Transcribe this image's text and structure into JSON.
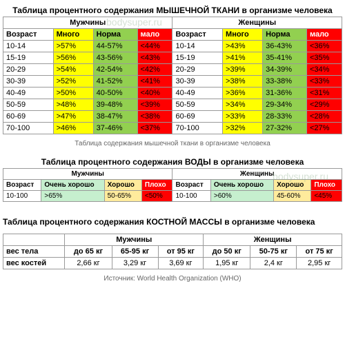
{
  "watermark": "bodysuper.ru",
  "colors": {
    "yellow": "#ffff00",
    "green": "#92d050",
    "red": "#ff0000",
    "lightgreen": "#c6efce",
    "lightyellow": "#ffeb9c",
    "headerGrey": "#f2f2f2",
    "white": "#ffffff"
  },
  "muscle": {
    "title": "Таблица процентного содержания МЫШЕЧНОЙ ТКАНИ в организме человека",
    "caption": "Таблица содержания мышечной ткани в организме человека",
    "groups": [
      "Мужчины",
      "Женщины"
    ],
    "cols": [
      "Возраст",
      "Много",
      "Норма",
      "мало"
    ],
    "cols_colors": [
      "white",
      "yellow",
      "green",
      "red"
    ],
    "rows_m": [
      [
        "10-14",
        ">57%",
        "44-57%",
        "<44%"
      ],
      [
        "15-19",
        ">56%",
        "43-56%",
        "<43%"
      ],
      [
        "20-29",
        ">54%",
        "42-54%",
        "<42%"
      ],
      [
        "30-39",
        ">52%",
        "41-52%",
        "<41%"
      ],
      [
        "40-49",
        ">50%",
        "40-50%",
        "<40%"
      ],
      [
        "50-59",
        ">48%",
        "39-48%",
        "<39%"
      ],
      [
        "60-69",
        ">47%",
        "38-47%",
        "<38%"
      ],
      [
        "70-100",
        ">46%",
        "37-46%",
        "<37%"
      ]
    ],
    "rows_f": [
      [
        "10-14",
        ">43%",
        "36-43%",
        "<36%"
      ],
      [
        "15-19",
        ">41%",
        "35-41%",
        "<35%"
      ],
      [
        "20-29",
        ">39%",
        "34-39%",
        "<34%"
      ],
      [
        "30-39",
        ">38%",
        "33-38%",
        "<33%"
      ],
      [
        "40-49",
        ">36%",
        "31-36%",
        "<31%"
      ],
      [
        "50-59",
        ">34%",
        "29-34%",
        "<29%"
      ],
      [
        "60-69",
        ">33%",
        "28-33%",
        "<28%"
      ],
      [
        "70-100",
        ">32%",
        "27-32%",
        "<27%"
      ]
    ]
  },
  "water": {
    "title": "Таблица процентного содержания ВОДЫ в организме человека",
    "groups": [
      "Мужчины",
      "Женщины"
    ],
    "cols": [
      "Возраст",
      "Очень хорошо",
      "Хорошо",
      "Плохо"
    ],
    "cols_colors": [
      "white",
      "lightgreen",
      "lightyellow",
      "red"
    ],
    "rows_m": [
      [
        "10-100",
        ">65%",
        "50-65%",
        "<50%"
      ]
    ],
    "rows_f": [
      [
        "10-100",
        ">60%",
        "45-60%",
        "<45%"
      ]
    ]
  },
  "bone": {
    "title": "Таблица процентного содержания КОСТНОЙ МАССЫ  в организме человека",
    "groups": [
      "Мужчины",
      "Женщины"
    ],
    "row_labels": [
      "вес тела",
      "вес костей"
    ],
    "m": [
      [
        "до 65 кг",
        "65-95 кг",
        "от 95 кг"
      ],
      [
        "2,66 кг",
        "3,29 кг",
        "3,69 кг"
      ]
    ],
    "f": [
      [
        "до 50 кг",
        "50-75 кг",
        "от 75 кг"
      ],
      [
        "1,95 кг",
        "2,4 кг",
        "2,95 кг"
      ]
    ]
  },
  "source_label": "Источник:",
  "source_value": "World Health Organization (WHO)"
}
